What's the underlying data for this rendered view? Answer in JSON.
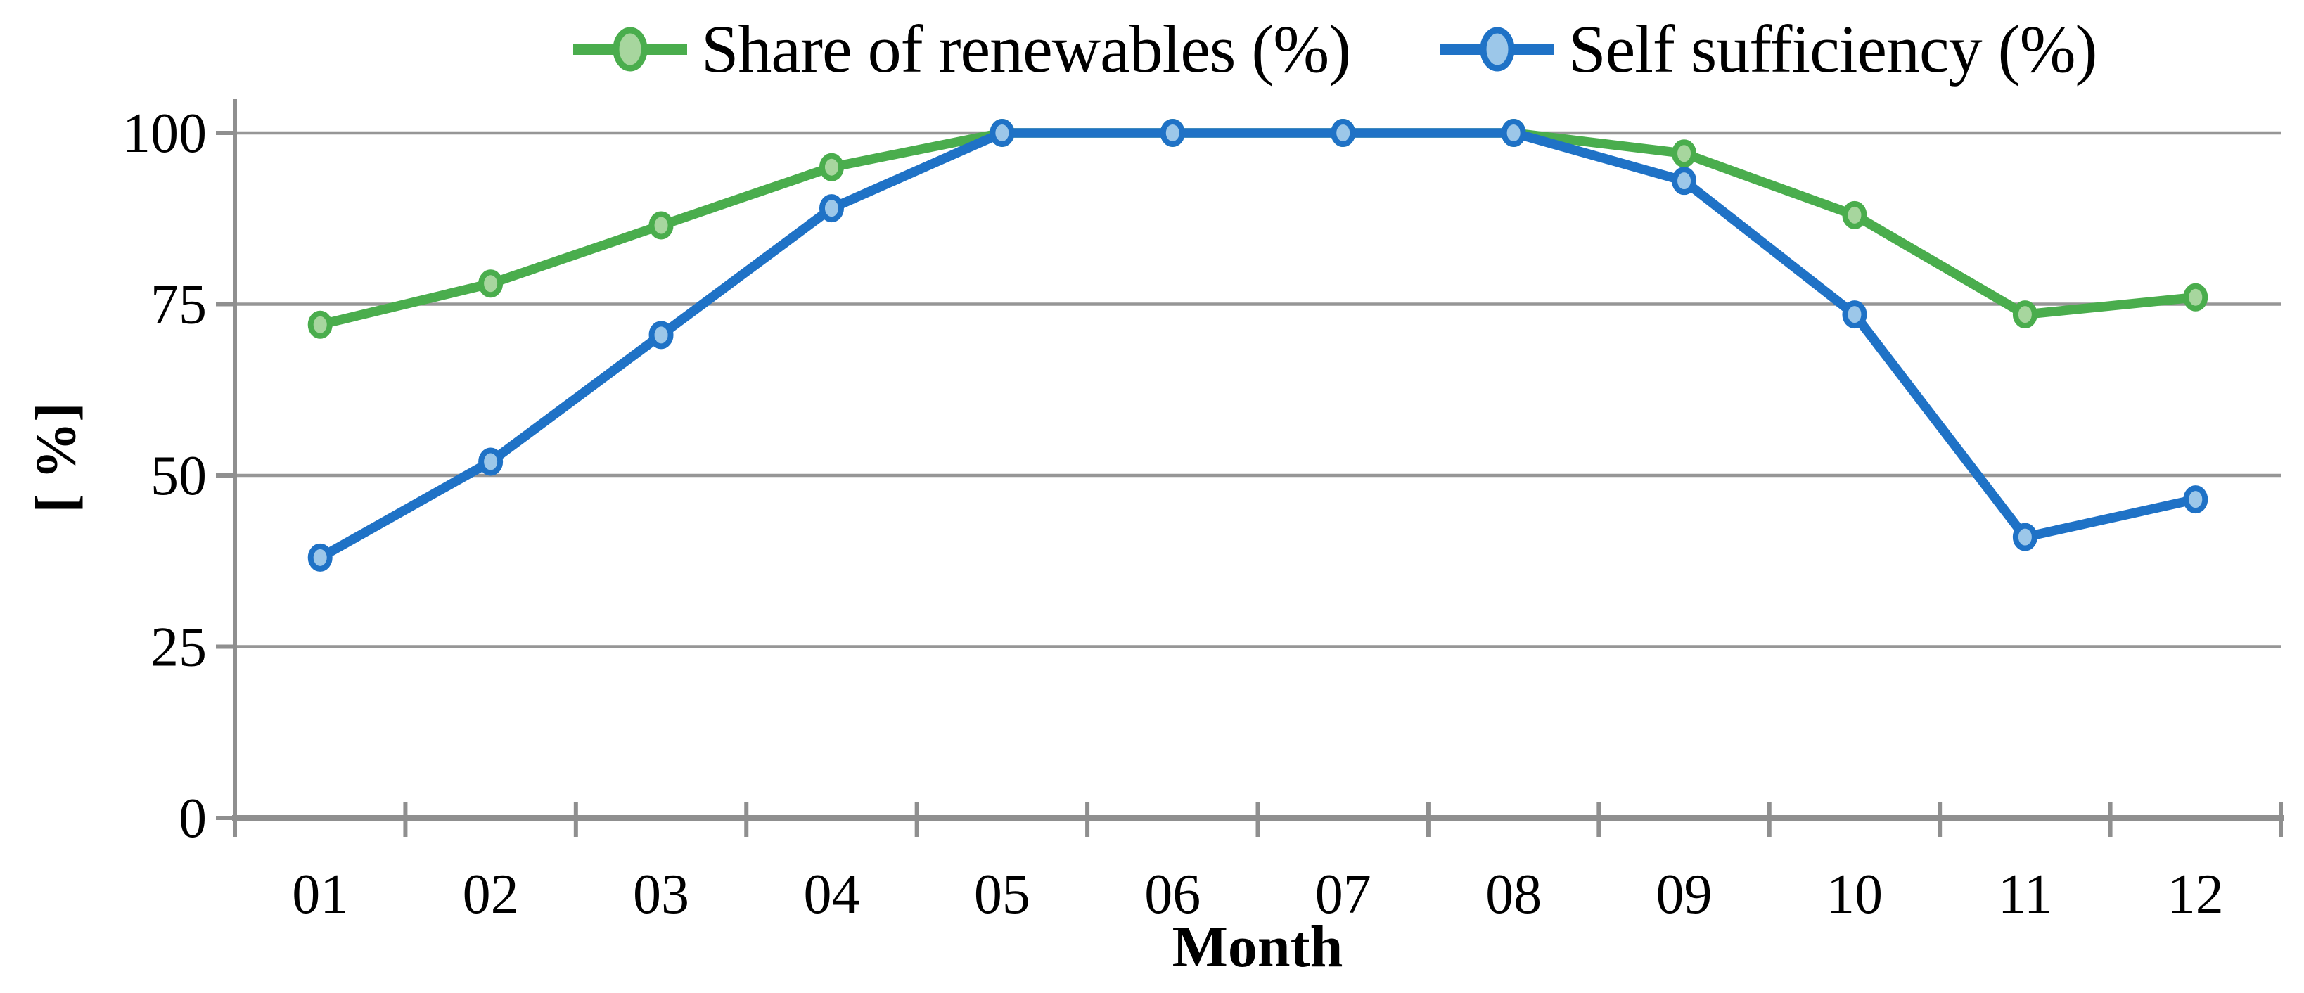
{
  "figure": {
    "background": "#ffffff",
    "grid_color": "#969696",
    "axis_color": "#8f8f8f",
    "text_color": "#000000"
  },
  "chart_data": {
    "type": "line",
    "title": "",
    "categories": [
      "01",
      "02",
      "03",
      "04",
      "05",
      "06",
      "07",
      "08",
      "09",
      "10",
      "11",
      "12"
    ],
    "series": [
      {
        "name": "Share of renewables (%)",
        "color": "#4AAD4D",
        "marker_fill": "#A7D69E",
        "values": [
          72,
          78,
          86.5,
          95,
          100,
          100,
          100,
          100,
          97,
          88,
          73.5,
          76
        ]
      },
      {
        "name": "Self sufficiency (%)",
        "color": "#1F72C6",
        "marker_fill": "#9CC7E9",
        "values": [
          38,
          52,
          70.5,
          89,
          100,
          100,
          100,
          100,
          93,
          73.5,
          41,
          46.5
        ]
      }
    ],
    "xlabel": "Month",
    "ylabel": "[ %]",
    "yticks": [
      0,
      25,
      50,
      75,
      100
    ],
    "ylim": [
      0,
      100
    ],
    "grid": true,
    "legend_position": "top"
  }
}
